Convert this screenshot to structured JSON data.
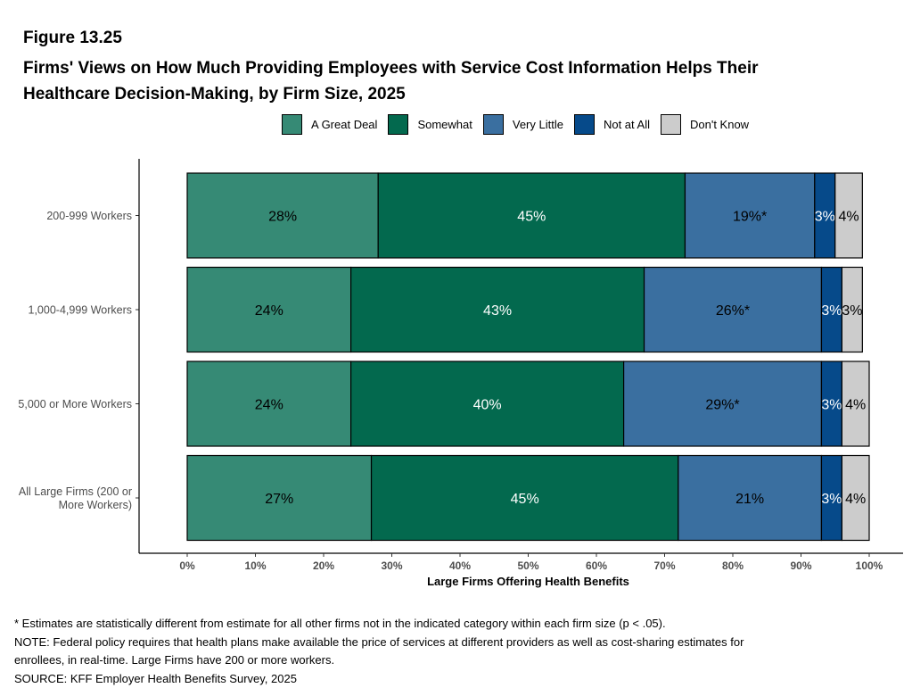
{
  "figure_label": "Figure 13.25",
  "title_line1": "Firms' Views on How Much Providing Employees with Service Cost Information Helps Their",
  "title_line2": "Healthcare Decision-Making, by Firm Size, 2025",
  "legend": [
    {
      "label": "A Great Deal",
      "color": "#368A75"
    },
    {
      "label": "Somewhat",
      "color": "#03694E"
    },
    {
      "label": "Very Little",
      "color": "#3A6FA0"
    },
    {
      "label": "Not at All",
      "color": "#064A8A"
    },
    {
      "label": "Don't Know",
      "color": "#CCCCCC"
    }
  ],
  "chart_data": {
    "type": "bar",
    "orientation": "horizontal",
    "stacked": true,
    "categories": [
      "200-999 Workers",
      "1,000-4,999 Workers",
      "5,000 or More Workers",
      "All Large Firms (200 or More Workers)"
    ],
    "category_lines": [
      [
        "200-999 Workers"
      ],
      [
        "1,000-4,999 Workers"
      ],
      [
        "5,000 or More Workers"
      ],
      [
        "All Large Firms (200 or",
        "More Workers)"
      ]
    ],
    "series": [
      {
        "name": "A Great Deal",
        "color": "#368A75",
        "text_color": "#000000",
        "values": [
          28,
          24,
          24,
          27
        ],
        "labels": [
          "28%",
          "24%",
          "24%",
          "27%"
        ]
      },
      {
        "name": "Somewhat",
        "color": "#03694E",
        "text_color": "#FFFFFF",
        "values": [
          45,
          43,
          40,
          45
        ],
        "labels": [
          "45%",
          "43%",
          "40%",
          "45%"
        ]
      },
      {
        "name": "Very Little",
        "color": "#3A6FA0",
        "text_color": "#000000",
        "values": [
          19,
          26,
          29,
          21
        ],
        "labels": [
          "19%*",
          "26%*",
          "29%*",
          "21%"
        ]
      },
      {
        "name": "Not at All",
        "color": "#064A8A",
        "text_color": "#FFFFFF",
        "values": [
          3,
          3,
          3,
          3
        ],
        "labels": [
          "3%",
          "3%",
          "3%",
          "3%"
        ]
      },
      {
        "name": "Don't Know",
        "color": "#CCCCCC",
        "text_color": "#000000",
        "values": [
          4,
          3,
          4,
          4
        ],
        "labels": [
          "4%",
          "3%",
          "4%",
          "4%"
        ]
      }
    ],
    "xlim": [
      0,
      100
    ],
    "xticks": [
      "0%",
      "10%",
      "20%",
      "30%",
      "40%",
      "50%",
      "60%",
      "70%",
      "80%",
      "90%",
      "100%"
    ],
    "xlabel": "Large Firms Offering Health Benefits",
    "ylabel": "",
    "grid": false,
    "legend_position": "top"
  },
  "notes": [
    "* Estimates are statistically different from estimate for all other firms not in the indicated category within each firm size (p < .05).",
    "NOTE: Federal policy requires that health plans make available the price of services at different providers as well as cost-sharing estimates for",
    "enrollees, in real-time. Large Firms have 200 or more workers.",
    "SOURCE: KFF Employer Health Benefits Survey, 2025"
  ]
}
